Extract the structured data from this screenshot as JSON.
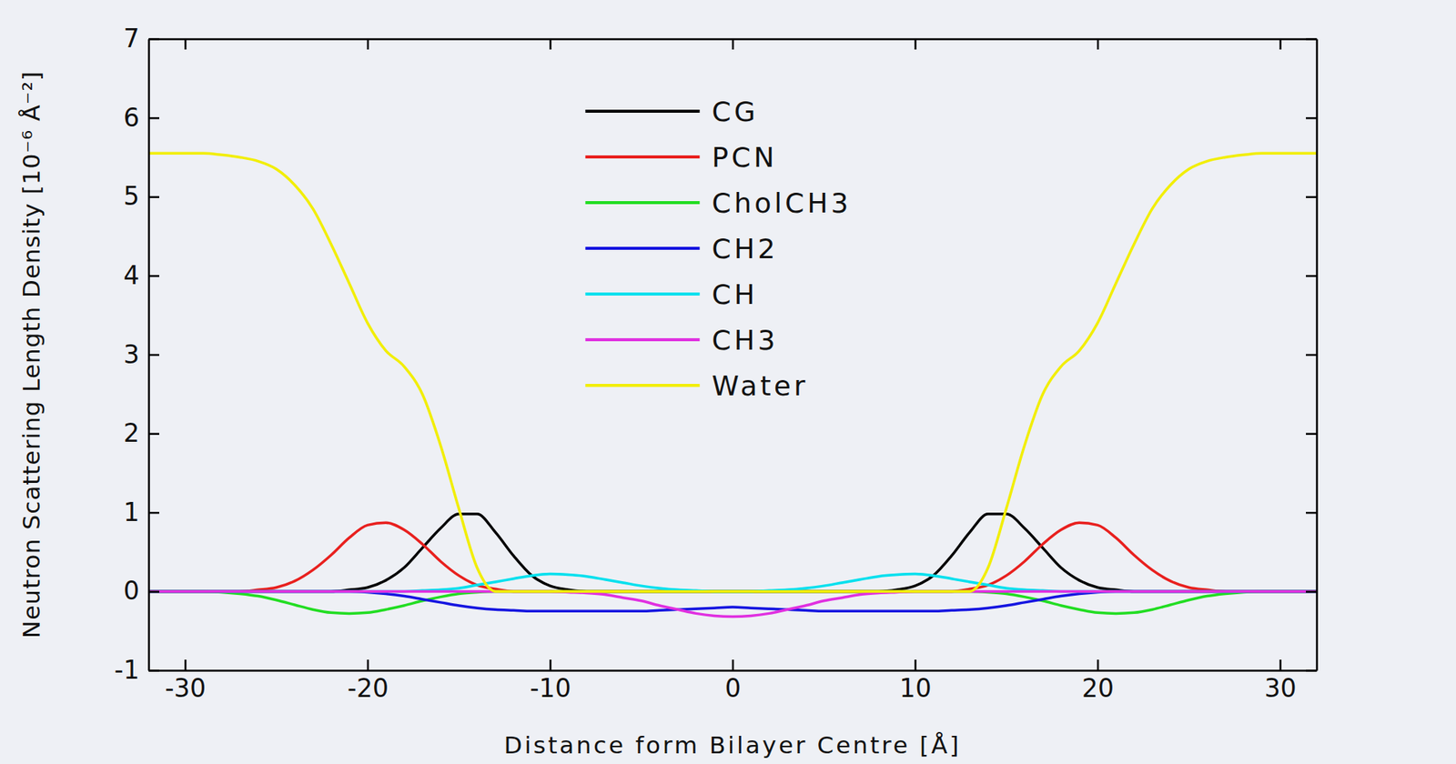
{
  "chart_data": {
    "type": "line",
    "x_label": "Distance form Bilayer Centre  [Å]",
    "y_label": "Neutron Scattering Length Density  [10⁻⁶ Å⁻²]",
    "x": [
      -32,
      -31,
      -30,
      -29,
      -28,
      -27,
      -26,
      -25,
      -24,
      -23,
      -22,
      -21,
      -20,
      -19,
      -18,
      -17,
      -16,
      -15,
      -14,
      -13,
      -12,
      -11,
      -10,
      -9,
      -8,
      -7,
      -6,
      -5,
      -4,
      -3,
      -2,
      -1,
      0,
      1,
      2,
      3,
      4,
      5,
      6,
      7,
      8,
      9,
      10,
      11,
      12,
      13,
      14,
      15,
      16,
      17,
      18,
      19,
      20,
      21,
      22,
      23,
      24,
      25,
      26,
      27,
      28,
      29,
      30,
      31,
      32
    ],
    "xlim": [
      -32,
      32
    ],
    "xticks": [
      -30,
      -20,
      -10,
      0,
      10,
      20,
      30
    ],
    "ylim": [
      -1,
      7
    ],
    "yticks": [
      -1,
      0,
      1,
      2,
      3,
      4,
      5,
      6,
      7
    ],
    "grid": false,
    "legend": "top",
    "series": [
      {
        "name": "CG",
        "color": "#000000",
        "values": [
          0,
          0,
          0,
          0,
          0,
          0,
          0,
          0,
          0,
          0,
          0,
          0.02,
          0.05,
          0.14,
          0.3,
          0.55,
          0.8,
          0.98,
          0.98,
          0.75,
          0.45,
          0.2,
          0.07,
          0.02,
          0,
          0,
          0,
          0,
          0,
          0,
          0,
          0,
          0,
          0,
          0,
          0,
          0,
          0,
          0,
          0,
          0,
          0.02,
          0.07,
          0.2,
          0.45,
          0.75,
          0.98,
          0.98,
          0.8,
          0.55,
          0.3,
          0.14,
          0.05,
          0.02,
          0,
          0,
          0,
          0,
          0,
          0,
          0,
          0,
          0,
          0,
          0
        ]
      },
      {
        "name": "PCN",
        "color": "#e8201e",
        "values": [
          0,
          0,
          0,
          0,
          0,
          0,
          0.02,
          0.05,
          0.13,
          0.27,
          0.46,
          0.68,
          0.84,
          0.87,
          0.78,
          0.6,
          0.38,
          0.2,
          0.08,
          0.03,
          0,
          0,
          0,
          0,
          0,
          0,
          0,
          0,
          0,
          0,
          0,
          0,
          0,
          0,
          0,
          0,
          0,
          0,
          0,
          0,
          0,
          0,
          0,
          0,
          0,
          0.03,
          0.08,
          0.2,
          0.38,
          0.6,
          0.78,
          0.87,
          0.84,
          0.68,
          0.46,
          0.27,
          0.13,
          0.05,
          0.02,
          0,
          0,
          0,
          0,
          0,
          0
        ]
      },
      {
        "name": "CholCH3",
        "color": "#22dd22",
        "values": [
          0,
          0,
          0,
          0,
          -0.01,
          -0.03,
          -0.06,
          -0.11,
          -0.17,
          -0.23,
          -0.27,
          -0.28,
          -0.27,
          -0.23,
          -0.18,
          -0.12,
          -0.07,
          -0.03,
          -0.01,
          0,
          0,
          0,
          0,
          0,
          0,
          0,
          0,
          0,
          0,
          0,
          0,
          0,
          0,
          0,
          0,
          0,
          0,
          0,
          0,
          0,
          0,
          0,
          0,
          0,
          0,
          0,
          -0.01,
          -0.03,
          -0.07,
          -0.12,
          -0.18,
          -0.23,
          -0.27,
          -0.28,
          -0.27,
          -0.23,
          -0.17,
          -0.11,
          -0.06,
          -0.03,
          -0.01,
          0,
          0,
          0,
          0
        ]
      },
      {
        "name": "CH2",
        "color": "#1515e0",
        "values": [
          0,
          0,
          0,
          0,
          0,
          0,
          0,
          0,
          0,
          0,
          0,
          0,
          -0.01,
          -0.03,
          -0.06,
          -0.1,
          -0.14,
          -0.18,
          -0.21,
          -0.23,
          -0.24,
          -0.25,
          -0.25,
          -0.25,
          -0.25,
          -0.25,
          -0.25,
          -0.25,
          -0.24,
          -0.23,
          -0.22,
          -0.21,
          -0.2,
          -0.21,
          -0.22,
          -0.23,
          -0.24,
          -0.25,
          -0.25,
          -0.25,
          -0.25,
          -0.25,
          -0.25,
          -0.25,
          -0.24,
          -0.23,
          -0.21,
          -0.18,
          -0.14,
          -0.1,
          -0.06,
          -0.03,
          -0.01,
          0,
          0,
          0,
          0,
          0,
          0,
          0,
          0,
          0,
          0,
          0,
          0
        ]
      },
      {
        "name": "CH",
        "color": "#00e0ee",
        "values": [
          0,
          0,
          0,
          0,
          0,
          0,
          0,
          0,
          0,
          0,
          0,
          0,
          0,
          0,
          0,
          0.01,
          0.02,
          0.04,
          0.08,
          0.12,
          0.16,
          0.2,
          0.22,
          0.21,
          0.19,
          0.15,
          0.11,
          0.07,
          0.04,
          0.02,
          0.01,
          0,
          0,
          0,
          0.01,
          0.02,
          0.04,
          0.07,
          0.11,
          0.15,
          0.19,
          0.21,
          0.22,
          0.2,
          0.16,
          0.12,
          0.08,
          0.04,
          0.02,
          0.01,
          0,
          0,
          0,
          0,
          0,
          0,
          0,
          0,
          0,
          0,
          0,
          0,
          0,
          0,
          0
        ]
      },
      {
        "name": "CH3",
        "color": "#e030e0",
        "values": [
          0,
          0,
          0,
          0,
          0,
          0,
          0,
          0,
          0,
          0,
          0,
          0,
          0,
          0,
          0,
          0,
          0,
          0,
          0,
          0,
          0,
          0,
          0,
          -0.01,
          -0.02,
          -0.04,
          -0.08,
          -0.12,
          -0.18,
          -0.23,
          -0.28,
          -0.31,
          -0.32,
          -0.31,
          -0.28,
          -0.23,
          -0.18,
          -0.12,
          -0.08,
          -0.04,
          -0.02,
          -0.01,
          0,
          0,
          0,
          0,
          0,
          0,
          0,
          0,
          0,
          0,
          0,
          0,
          0,
          0,
          0,
          0,
          0,
          0,
          0,
          0,
          0,
          0,
          0
        ]
      },
      {
        "name": "Water",
        "color": "#f2ee00",
        "values": [
          5.55,
          5.55,
          5.55,
          5.55,
          5.53,
          5.5,
          5.45,
          5.35,
          5.15,
          4.85,
          4.4,
          3.9,
          3.4,
          3.05,
          2.85,
          2.5,
          1.85,
          1.05,
          0.3,
          0,
          0,
          0,
          0,
          0,
          0,
          0,
          0,
          0,
          0,
          0,
          0,
          0,
          0,
          0,
          0,
          0,
          0,
          0,
          0,
          0,
          0,
          0,
          0,
          0,
          0,
          0,
          0.3,
          1.05,
          1.85,
          2.5,
          2.85,
          3.05,
          3.4,
          3.9,
          4.4,
          4.85,
          5.15,
          5.35,
          5.45,
          5.5,
          5.53,
          5.55,
          5.55,
          5.55,
          5.55
        ]
      }
    ]
  }
}
